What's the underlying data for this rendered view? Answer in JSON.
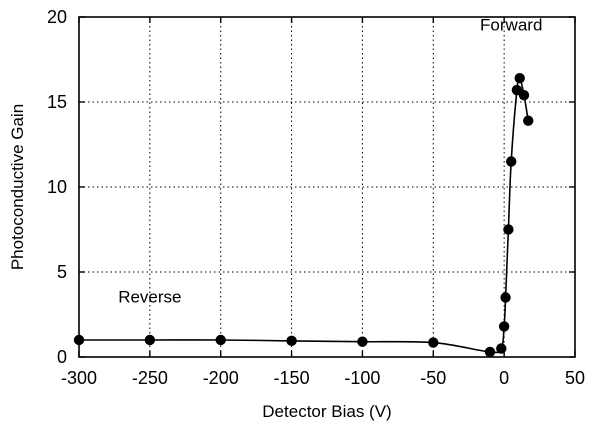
{
  "chart_data": {
    "type": "line",
    "title": "",
    "xlabel": "Detector Bias (V)",
    "ylabel": "Photoconductive Gain",
    "xlim": [
      -300,
      50
    ],
    "ylim": [
      0,
      20
    ],
    "xticks": [
      -300,
      -250,
      -200,
      -150,
      -100,
      -50,
      0,
      50
    ],
    "yticks": [
      0,
      5,
      10,
      15,
      20
    ],
    "grid": true,
    "legend": "none",
    "markers": "filled-circle",
    "color": "#000000",
    "series": [
      {
        "points": [
          {
            "x": -300,
            "y": 1.0
          },
          {
            "x": -250,
            "y": 1.0
          },
          {
            "x": -200,
            "y": 1.0
          },
          {
            "x": -150,
            "y": 0.95
          },
          {
            "x": -100,
            "y": 0.9
          },
          {
            "x": -50,
            "y": 0.85
          },
          {
            "x": -10,
            "y": 0.3
          },
          {
            "x": -2,
            "y": 0.5
          },
          {
            "x": 0,
            "y": 1.8
          },
          {
            "x": 1,
            "y": 3.5
          },
          {
            "x": 3,
            "y": 7.5
          },
          {
            "x": 5,
            "y": 11.5
          },
          {
            "x": 9,
            "y": 15.7
          },
          {
            "x": 11,
            "y": 16.4
          },
          {
            "x": 14,
            "y": 15.4
          },
          {
            "x": 17,
            "y": 13.9
          }
        ]
      }
    ],
    "annotations": [
      {
        "text": "Reverse",
        "x": -250,
        "y": 3.2
      },
      {
        "text": "Forward",
        "x": 5,
        "y": 19.2
      }
    ]
  }
}
